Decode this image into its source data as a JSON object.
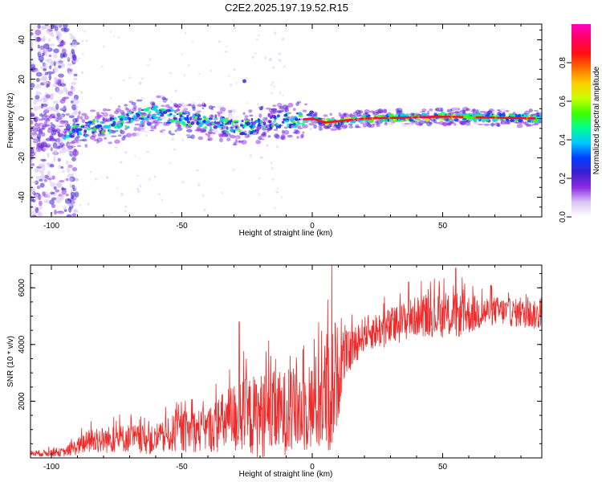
{
  "title": "C2E2.2025.197.19.52.R15",
  "chart_data": [
    {
      "type": "heatmap",
      "xlabel": "Height of straight line (km)",
      "ylabel": "Frequency (Hz)",
      "xlim": [
        -108,
        88
      ],
      "ylim": [
        -50,
        48
      ],
      "xticks": [
        -100,
        -50,
        0,
        50
      ],
      "yticks": [
        -40,
        -20,
        0,
        20,
        40
      ],
      "colorbar": {
        "label": "Normalized spectral amplitude",
        "range": [
          0,
          1
        ],
        "ticks": [
          0.0,
          0.2,
          0.4,
          0.6,
          0.8
        ],
        "tick_labels": [
          "0.0",
          "0.2",
          "0.4",
          "0.6",
          "0.8"
        ],
        "colors": [
          "#ffffff",
          "#d9c4f5",
          "#8a2be2",
          "#3a1fd0",
          "#0040ff",
          "#00c8ff",
          "#00ff90",
          "#40ff00",
          "#c8ff00",
          "#ffd000",
          "#ff7000",
          "#ff1010",
          "#ff0060",
          "#ff00c0"
        ]
      },
      "ridge": [
        {
          "x": -108,
          "freq": -8
        },
        {
          "x": -90,
          "freq": -6
        },
        {
          "x": -75,
          "freq": -3
        },
        {
          "x": -62,
          "freq": 3
        },
        {
          "x": -50,
          "freq": 0
        },
        {
          "x": -38,
          "freq": -2
        },
        {
          "x": -28,
          "freq": -5
        },
        {
          "x": -15,
          "freq": -2
        },
        {
          "x": 0,
          "freq": 0
        },
        {
          "x": 5,
          "freq": -2
        },
        {
          "x": 20,
          "freq": 0
        },
        {
          "x": 50,
          "freq": 1
        },
        {
          "x": 88,
          "freq": 0
        }
      ]
    },
    {
      "type": "line",
      "xlabel": "Height of straight line (km)",
      "ylabel": "SNR (10 * v/v)",
      "xlim": [
        -108,
        88
      ],
      "ylim": [
        0,
        6800
      ],
      "xticks": [
        -100,
        -50,
        0,
        50
      ],
      "yticks": [
        2000,
        4000,
        6000
      ],
      "color": "#ee2a2a",
      "envelope": [
        {
          "x": -108,
          "mean": 150,
          "spread": 100
        },
        {
          "x": -95,
          "mean": 200,
          "spread": 150
        },
        {
          "x": -85,
          "mean": 600,
          "spread": 450
        },
        {
          "x": -70,
          "mean": 700,
          "spread": 500
        },
        {
          "x": -60,
          "mean": 600,
          "spread": 500
        },
        {
          "x": -52,
          "mean": 900,
          "spread": 700
        },
        {
          "x": -40,
          "mean": 1000,
          "spread": 800
        },
        {
          "x": -30,
          "mean": 1400,
          "spread": 1300
        },
        {
          "x": -20,
          "mean": 1500,
          "spread": 1500
        },
        {
          "x": -10,
          "mean": 1600,
          "spread": 1500
        },
        {
          "x": 0,
          "mean": 1800,
          "spread": 1600
        },
        {
          "x": 8,
          "mean": 2500,
          "spread": 2500
        },
        {
          "x": 12,
          "mean": 3500,
          "spread": 800
        },
        {
          "x": 20,
          "mean": 4400,
          "spread": 600
        },
        {
          "x": 30,
          "mean": 4600,
          "spread": 700
        },
        {
          "x": 40,
          "mean": 5000,
          "spread": 700
        },
        {
          "x": 55,
          "mean": 5000,
          "spread": 800
        },
        {
          "x": 70,
          "mean": 5200,
          "spread": 500
        },
        {
          "x": 88,
          "mean": 5000,
          "spread": 500
        }
      ],
      "spikes": [
        {
          "x": 7.5,
          "y": 6800
        },
        {
          "x": 8.2,
          "y": 900
        },
        {
          "x": 55,
          "y": 6700
        },
        {
          "x": 37,
          "y": 6200
        },
        {
          "x": -28,
          "y": 4800
        }
      ]
    }
  ]
}
